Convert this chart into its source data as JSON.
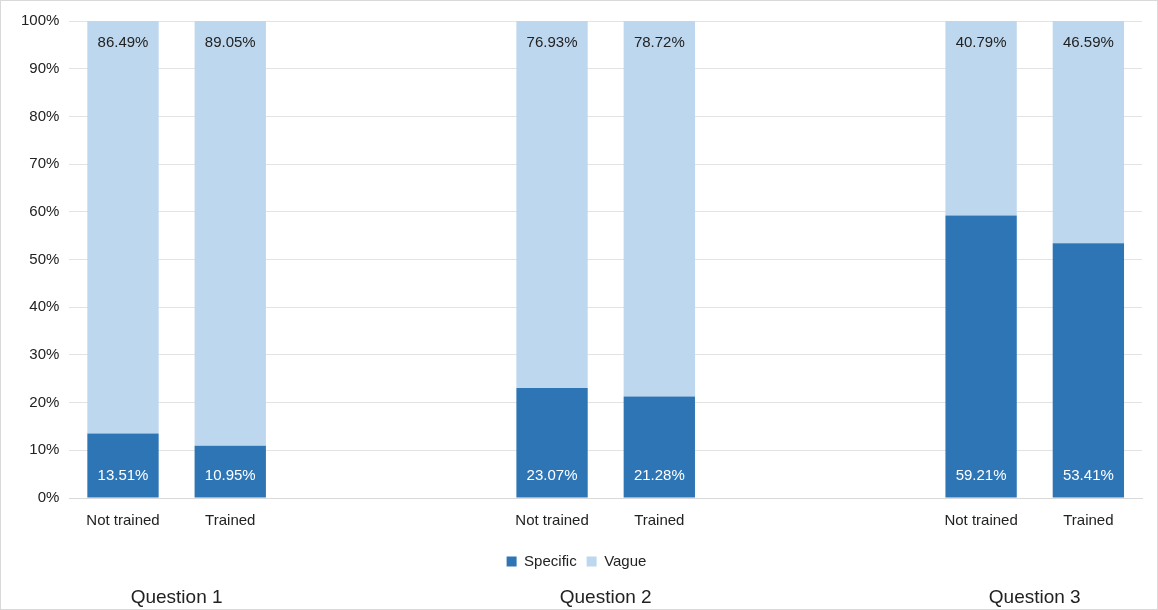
{
  "chart_data": {
    "type": "bar",
    "stacked": true,
    "categories": [
      "Not trained",
      "Trained",
      null,
      null,
      "Not trained",
      "Trained",
      null,
      null,
      "Not trained",
      "Trained"
    ],
    "series": [
      {
        "name": "Specific",
        "color": "#2e75b6",
        "values": [
          13.51,
          10.95,
          null,
          null,
          23.07,
          21.28,
          null,
          null,
          59.21,
          53.41
        ],
        "value_labels": [
          "13.51%",
          "10.95%",
          null,
          null,
          "23.07%",
          "21.28%",
          null,
          null,
          "59.21%",
          "53.41%"
        ]
      },
      {
        "name": "Vague",
        "color": "#bdd7ee",
        "values": [
          86.49,
          89.05,
          null,
          null,
          76.93,
          78.72,
          null,
          null,
          40.79,
          46.59
        ],
        "value_labels": [
          "86.49%",
          "89.05%",
          null,
          null,
          "76.93%",
          "78.72%",
          null,
          null,
          "40.79%",
          "46.59%"
        ]
      }
    ],
    "ylim": [
      0,
      100
    ],
    "yticks": [
      {
        "value": 0,
        "label": "0%"
      },
      {
        "value": 10,
        "label": "10%"
      },
      {
        "value": 20,
        "label": "20%"
      },
      {
        "value": 30,
        "label": "30%"
      },
      {
        "value": 40,
        "label": "40%"
      },
      {
        "value": 50,
        "label": "50%"
      },
      {
        "value": 60,
        "label": "60%"
      },
      {
        "value": 70,
        "label": "70%"
      },
      {
        "value": 80,
        "label": "80%"
      },
      {
        "value": 90,
        "label": "90%"
      },
      {
        "value": 100,
        "label": "100%"
      }
    ],
    "grid": "y",
    "legend": "bottom",
    "annotations": [
      "Question 1",
      "Question 2",
      "Question 3"
    ]
  }
}
